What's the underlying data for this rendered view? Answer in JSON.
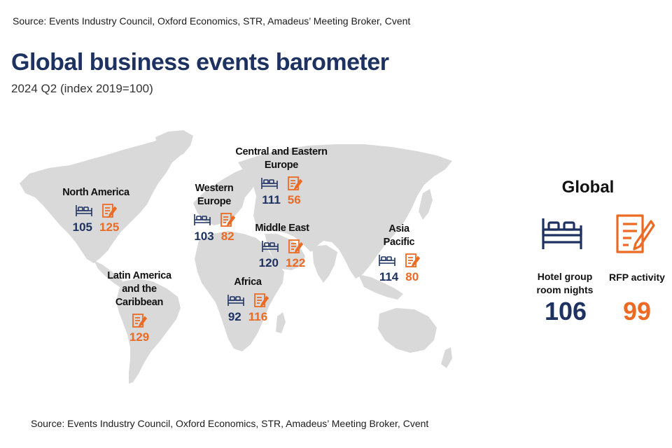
{
  "header": {
    "source_top": "Source: Events Industry Council, Oxford Economics, STR, Amadeus’ Meeting Broker, Cvent",
    "title": "Global business events barometer",
    "subtitle": "2024 Q2 (index 2019=100)"
  },
  "colors": {
    "hotel": "#1e3262",
    "rfp": "#ec6a23",
    "land": "#d9d9d9"
  },
  "icons": {
    "hotel": "bed-icon",
    "rfp": "rfp-document-icon"
  },
  "regions": [
    {
      "id": "north-america",
      "name": "North America",
      "hotel": "105",
      "rfp": "125"
    },
    {
      "id": "latin-america",
      "name": "Latin America\nand the\nCaribbean",
      "hotel": "",
      "rfp": "129"
    },
    {
      "id": "western-europe",
      "name": "Western\nEurope",
      "hotel": "103",
      "rfp": "82"
    },
    {
      "id": "central-eastern-europe",
      "name": "Central and Eastern\nEurope",
      "hotel": "111",
      "rfp": "56"
    },
    {
      "id": "middle-east",
      "name": "Middle East",
      "hotel": "120",
      "rfp": "122"
    },
    {
      "id": "africa",
      "name": "Africa",
      "hotel": "92",
      "rfp": "116"
    },
    {
      "id": "asia-pacific",
      "name": "Asia\nPacific",
      "hotel": "114",
      "rfp": "80"
    }
  ],
  "global": {
    "heading": "Global",
    "hotel_label": "Hotel group\nroom nights",
    "rfp_label": "RFP activity",
    "hotel_value": "106",
    "rfp_value": "99"
  },
  "footer": {
    "source_bottom": "Source: Events Industry Council, Oxford Economics, STR, Amadeus’ Meeting Broker, Cvent"
  }
}
